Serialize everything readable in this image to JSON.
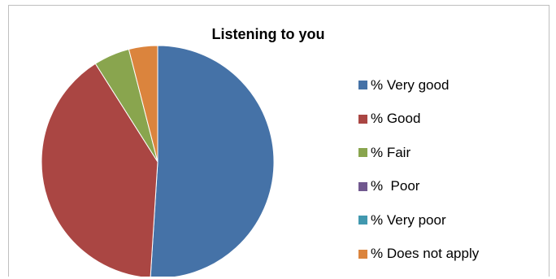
{
  "chart_data": {
    "type": "pie",
    "title": "Listening to you",
    "categories": [
      "% Very good",
      "% Good",
      "% Fair",
      "%  Poor",
      "% Very poor",
      "% Does not apply"
    ],
    "values": [
      51,
      40,
      5,
      0,
      0,
      4
    ],
    "colors": [
      "#4572A7",
      "#AA4643",
      "#89A54E",
      "#71588F",
      "#4198AF",
      "#DB843D"
    ],
    "legend_position": "right"
  }
}
